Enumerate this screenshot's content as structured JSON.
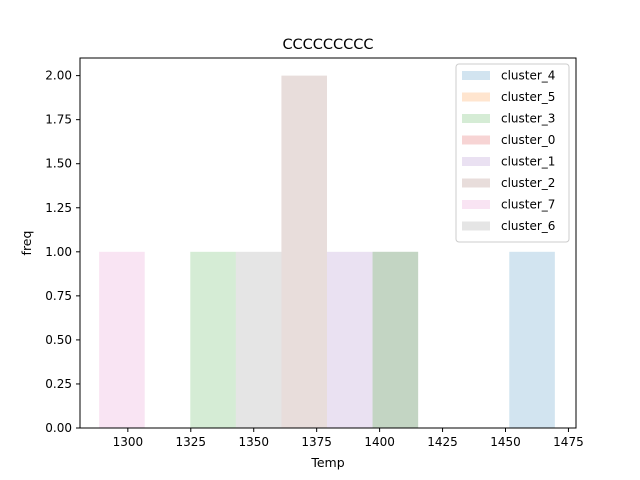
{
  "chart_data": {
    "type": "bar",
    "title": "CCCCCCCCC",
    "xlabel": "Temp",
    "ylabel": "freq",
    "xlim": [
      1281,
      1478
    ],
    "ylim": [
      0,
      2.1
    ],
    "grid": false,
    "legend_placement": "top-right",
    "xticks": [
      1300,
      1325,
      1350,
      1375,
      1400,
      1425,
      1450,
      1475
    ],
    "yticks": [
      "0.00",
      "0.25",
      "0.50",
      "0.75",
      "1.00",
      "1.25",
      "1.50",
      "1.75",
      "2.00"
    ],
    "bin_width": 18.1,
    "series": [
      {
        "name": "cluster_4",
        "color": "#1f77b4",
        "bins": [
          {
            "x0": 1451.5,
            "count": 1
          }
        ]
      },
      {
        "name": "cluster_5",
        "color": "#ff7f0e",
        "bins": []
      },
      {
        "name": "cluster_3",
        "color": "#2ca02c",
        "bins": [
          {
            "x0": 1324.8,
            "count": 1
          },
          {
            "x0": 1397.2,
            "count": 1
          }
        ]
      },
      {
        "name": "cluster_0",
        "color": "#d62728",
        "bins": []
      },
      {
        "name": "cluster_1",
        "color": "#9467bd",
        "bins": [
          {
            "x0": 1379.1,
            "count": 1
          }
        ]
      },
      {
        "name": "cluster_2",
        "color": "#8c564b",
        "bins": [
          {
            "x0": 1361.0,
            "count": 2
          }
        ]
      },
      {
        "name": "cluster_7",
        "color": "#e377c2",
        "bins": [
          {
            "x0": 1288.6,
            "count": 1
          }
        ]
      },
      {
        "name": "cluster_6",
        "color": "#7f7f7f",
        "bins": [
          {
            "x0": 1342.9,
            "count": 1
          },
          {
            "x0": 1397.2,
            "count": 1
          }
        ]
      }
    ]
  }
}
